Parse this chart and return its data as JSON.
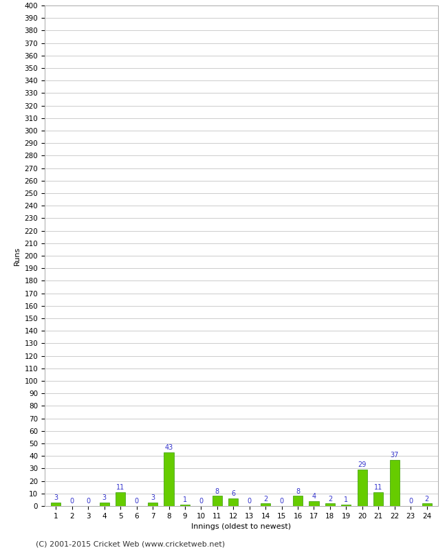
{
  "innings": [
    1,
    2,
    3,
    4,
    5,
    6,
    7,
    8,
    9,
    10,
    11,
    12,
    13,
    14,
    15,
    16,
    17,
    18,
    19,
    20,
    21,
    22,
    23,
    24
  ],
  "runs": [
    3,
    0,
    0,
    3,
    11,
    0,
    3,
    43,
    1,
    0,
    8,
    6,
    0,
    2,
    0,
    8,
    4,
    2,
    1,
    29,
    11,
    37,
    0,
    2
  ],
  "bar_color": "#66cc00",
  "bar_edge_color": "#339900",
  "label_color": "#3333cc",
  "background_color": "#ffffff",
  "grid_color": "#cccccc",
  "xlabel": "Innings (oldest to newest)",
  "ylabel": "Runs",
  "ylim": [
    0,
    400
  ],
  "ytick_step": 10,
  "footer": "(C) 2001-2015 Cricket Web (www.cricketweb.net)",
  "axis_label_fontsize": 8,
  "tick_label_fontsize": 7.5,
  "bar_label_fontsize": 7,
  "footer_fontsize": 8
}
